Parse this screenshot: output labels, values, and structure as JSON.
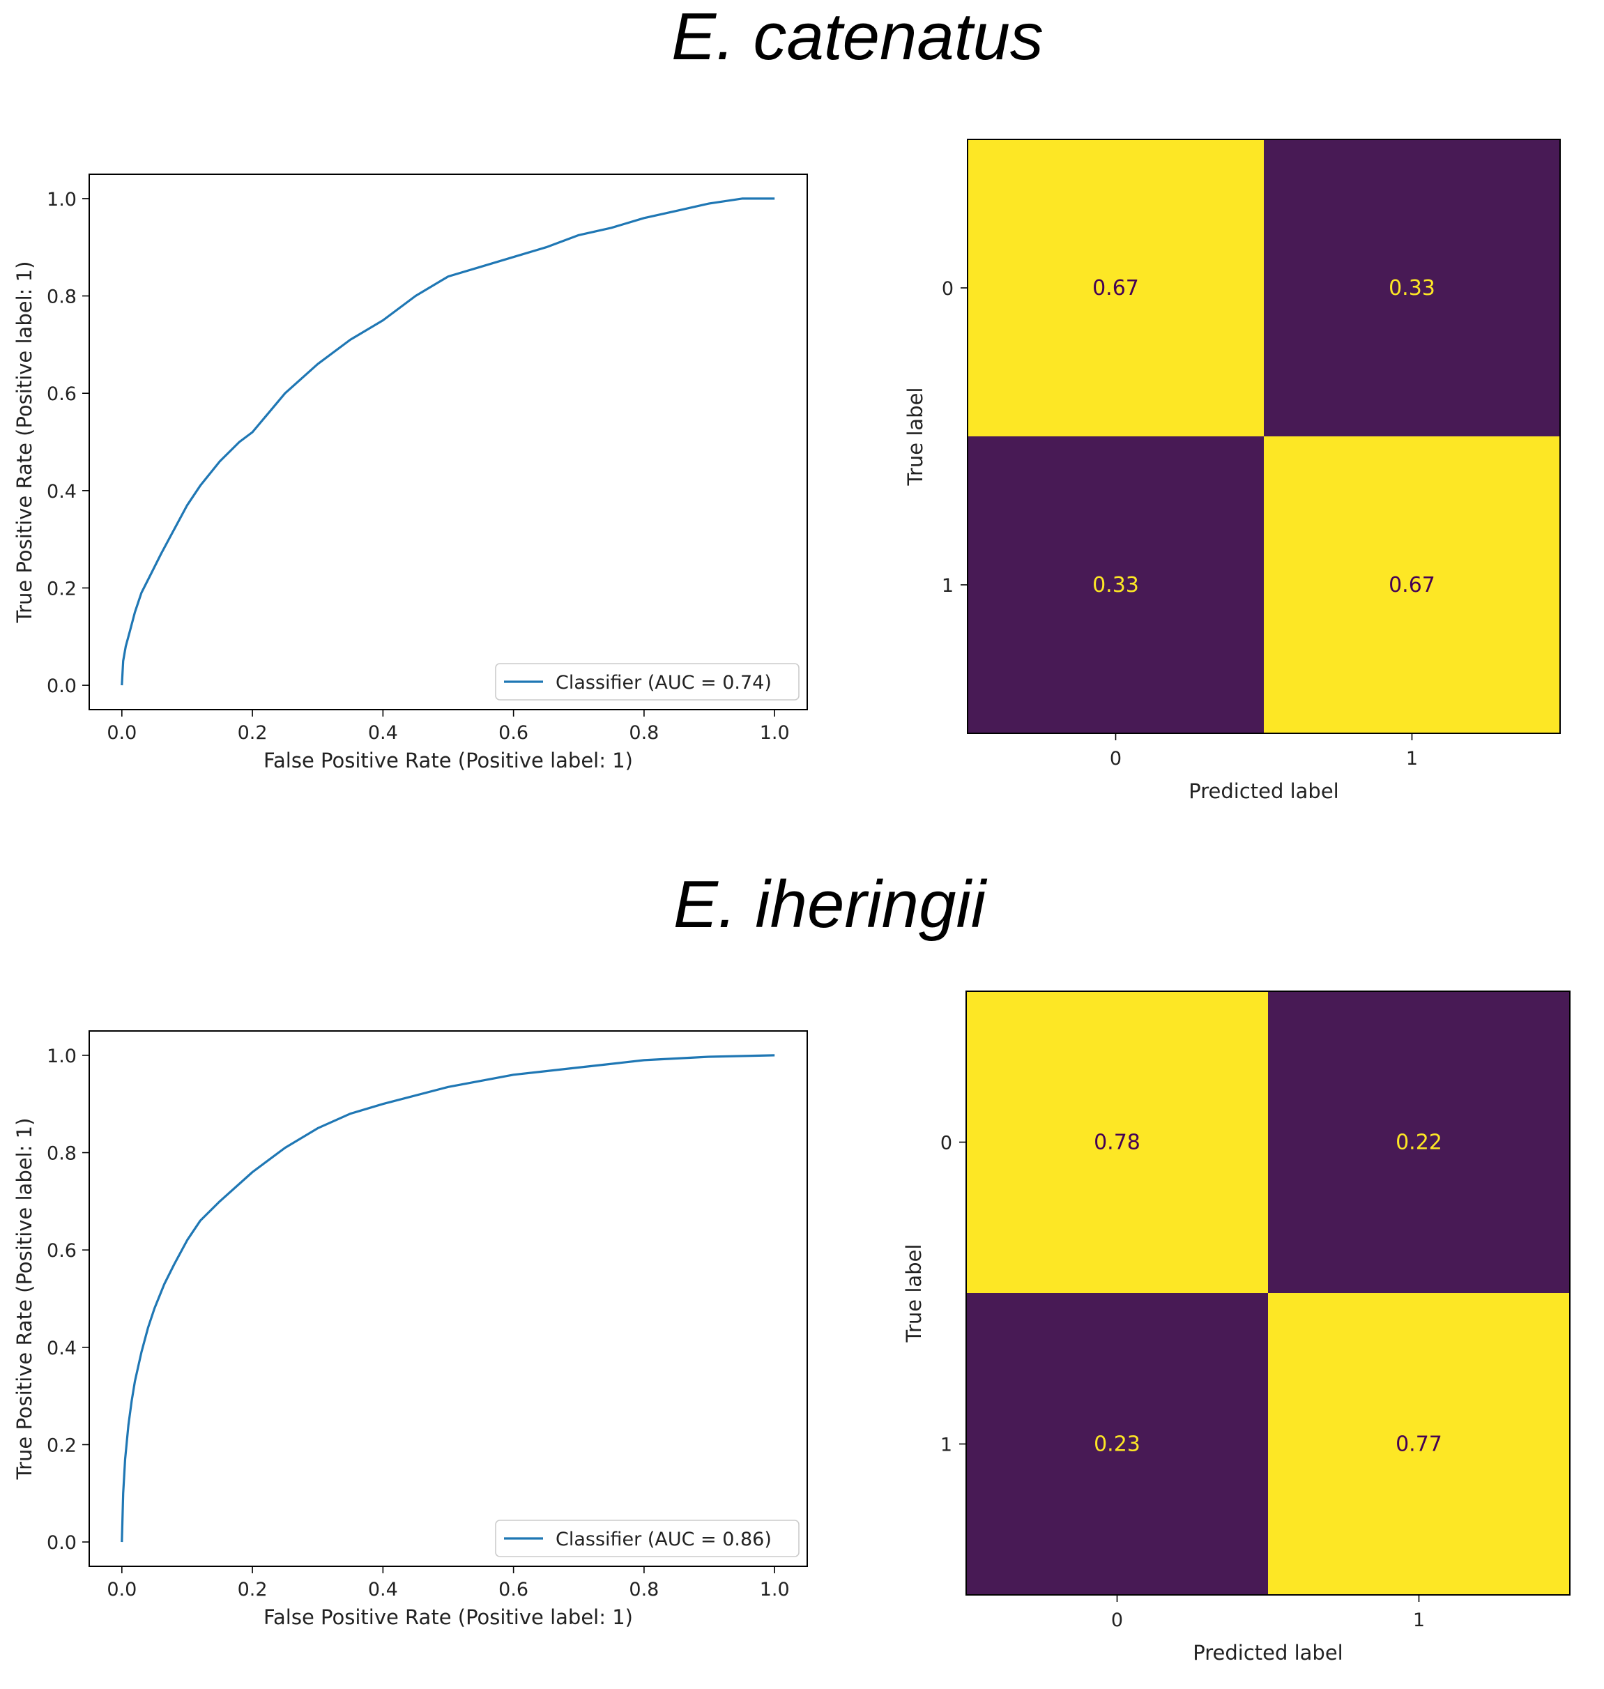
{
  "panels": [
    {
      "title": "E. catenatus",
      "roc": {
        "type": "line",
        "xlabel": "False Positive Rate (Positive label: 1)",
        "ylabel": "True Positive Rate (Positive label: 1)",
        "xlim": [
          -0.05,
          1.05
        ],
        "ylim": [
          -0.05,
          1.05
        ],
        "xticks": [
          "0.0",
          "0.2",
          "0.4",
          "0.6",
          "0.8",
          "1.0"
        ],
        "yticks": [
          "0.0",
          "0.2",
          "0.4",
          "0.6",
          "0.8",
          "1.0"
        ],
        "legend": "Classifier (AUC = 0.74)",
        "legend_position": "lower-right",
        "color": "#1f77b4",
        "x": [
          0,
          0.002,
          0.006,
          0.012,
          0.02,
          0.03,
          0.045,
          0.06,
          0.08,
          0.1,
          0.12,
          0.15,
          0.18,
          0.2,
          0.25,
          0.3,
          0.35,
          0.4,
          0.45,
          0.5,
          0.55,
          0.6,
          0.65,
          0.7,
          0.75,
          0.8,
          0.85,
          0.9,
          0.95,
          1.0
        ],
        "y": [
          0,
          0.05,
          0.08,
          0.11,
          0.15,
          0.19,
          0.23,
          0.27,
          0.32,
          0.37,
          0.41,
          0.46,
          0.5,
          0.52,
          0.6,
          0.66,
          0.71,
          0.75,
          0.8,
          0.84,
          0.86,
          0.88,
          0.9,
          0.925,
          0.94,
          0.96,
          0.975,
          0.99,
          1.0,
          1.0
        ]
      },
      "confusion": {
        "type": "heatmap",
        "xlabel": "Predicted label",
        "ylabel": "True label",
        "xticks": [
          "0",
          "1"
        ],
        "yticks": [
          "0",
          "1"
        ],
        "values": [
          [
            "0.67",
            "0.33"
          ],
          [
            "0.33",
            "0.67"
          ]
        ],
        "high_color": "#fde725",
        "low_color": "#481a55",
        "high_text_color": "#440154",
        "low_text_color": "#fde725"
      }
    },
    {
      "title": "E. iheringii",
      "roc": {
        "type": "line",
        "xlabel": "False Positive Rate (Positive label: 1)",
        "ylabel": "True Positive Rate (Positive label: 1)",
        "xlim": [
          -0.05,
          1.05
        ],
        "ylim": [
          -0.05,
          1.05
        ],
        "xticks": [
          "0.0",
          "0.2",
          "0.4",
          "0.6",
          "0.8",
          "1.0"
        ],
        "yticks": [
          "0.0",
          "0.2",
          "0.4",
          "0.6",
          "0.8",
          "1.0"
        ],
        "legend": "Classifier (AUC = 0.86)",
        "legend_position": "lower-right",
        "color": "#1f77b4",
        "x": [
          0,
          0.002,
          0.005,
          0.01,
          0.015,
          0.02,
          0.03,
          0.04,
          0.05,
          0.065,
          0.08,
          0.1,
          0.12,
          0.15,
          0.2,
          0.25,
          0.3,
          0.35,
          0.4,
          0.5,
          0.6,
          0.7,
          0.8,
          0.9,
          1.0
        ],
        "y": [
          0,
          0.1,
          0.17,
          0.24,
          0.29,
          0.33,
          0.39,
          0.44,
          0.48,
          0.53,
          0.57,
          0.62,
          0.66,
          0.7,
          0.76,
          0.81,
          0.85,
          0.88,
          0.9,
          0.935,
          0.96,
          0.975,
          0.99,
          0.997,
          1.0
        ]
      },
      "confusion": {
        "type": "heatmap",
        "xlabel": "Predicted label",
        "ylabel": "True label",
        "xticks": [
          "0",
          "1"
        ],
        "yticks": [
          "0",
          "1"
        ],
        "values": [
          [
            "0.78",
            "0.22"
          ],
          [
            "0.23",
            "0.77"
          ]
        ],
        "high_color": "#fde725",
        "low_color": "#481a55",
        "high_text_color": "#440154",
        "low_text_color": "#fde725"
      }
    }
  ]
}
